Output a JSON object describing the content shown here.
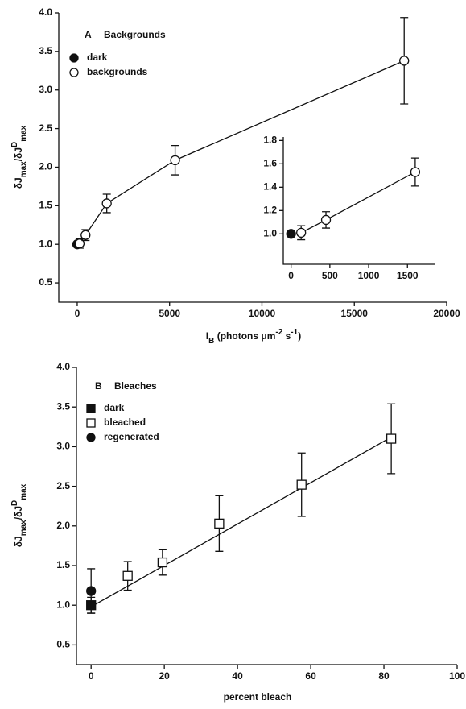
{
  "chart_data": [
    {
      "type": "scatter",
      "panel": "A",
      "title": "Backgrounds",
      "xlim": [
        -1000,
        20000
      ],
      "ylim": [
        0.25,
        4.0
      ],
      "xticks": [
        0,
        5000,
        10000,
        15000,
        20000
      ],
      "yticks": [
        0.5,
        {
          "value": 1,
          "label": "1.0"
        },
        1.5,
        {
          "value": 2,
          "label": "2.0"
        },
        2.5,
        {
          "value": 3,
          "label": "3.0"
        },
        3.5,
        {
          "value": 4,
          "label": "4.0"
        }
      ],
      "xlabel": [
        {
          "text": "I"
        },
        {
          "text": "B",
          "shift": "sub"
        },
        {
          "text": " (photons μm"
        },
        {
          "text": "-2",
          "shift": "super"
        },
        {
          "text": " s"
        },
        {
          "text": "-1",
          "shift": "super"
        },
        {
          "text": ")"
        }
      ],
      "ylabel": [
        {
          "text": "δJ"
        },
        {
          "text": "max",
          "shift": "sub"
        },
        {
          "text": "/δJ"
        },
        {
          "text": "D",
          "shift": "super"
        },
        {
          "text": "max",
          "shift": "sub"
        }
      ],
      "series": [
        {
          "name": "dark",
          "marker": "circle",
          "filled": true,
          "color": "#111111",
          "x": [
            0
          ],
          "values": [
            1.0
          ],
          "errors": [
            0
          ]
        },
        {
          "name": "backgrounds",
          "marker": "circle",
          "filled": false,
          "color": "#111111",
          "connect": true,
          "x": [
            130,
            450,
            1600,
            5300,
            17700
          ],
          "values": [
            1.01,
            1.12,
            1.53,
            2.09,
            3.38
          ],
          "errors": [
            0.06,
            0.07,
            0.12,
            0.19,
            0.56
          ]
        }
      ]
    },
    {
      "type": "scatter",
      "xlim": [
        -100,
        1850
      ],
      "ylim": [
        0.74,
        1.83
      ],
      "xticks": [
        0,
        500,
        1000,
        1500
      ],
      "yticks": [
        {
          "value": 1,
          "label": "1.0"
        },
        1.2,
        1.4,
        1.6,
        {
          "value": 1.8,
          "label": "1.8"
        }
      ],
      "series": [
        {
          "marker": "circle",
          "filled": true,
          "color": "#111111",
          "x": [
            0
          ],
          "values": [
            1.0
          ],
          "errors": [
            0
          ]
        },
        {
          "marker": "circle",
          "filled": false,
          "color": "#111111",
          "connect": true,
          "x": [
            130,
            450,
            1600
          ],
          "values": [
            1.01,
            1.12,
            1.53
          ],
          "errors": [
            0.06,
            0.07,
            0.12
          ]
        }
      ]
    },
    {
      "type": "scatter",
      "panel": "B",
      "title": "Bleaches",
      "xlim": [
        -4,
        100
      ],
      "ylim": [
        0.25,
        4.0
      ],
      "xticks": [
        0,
        20,
        40,
        60,
        80,
        100
      ],
      "yticks": [
        0.5,
        {
          "value": 1,
          "label": "1.0"
        },
        1.5,
        {
          "value": 2,
          "label": "2.0"
        },
        2.5,
        {
          "value": 3,
          "label": "3.0"
        },
        3.5,
        {
          "value": 4,
          "label": "4.0"
        }
      ],
      "xlabel": [
        {
          "text": "percent bleach"
        }
      ],
      "ylabel": [
        {
          "text": "δJ"
        },
        {
          "text": "max",
          "shift": "sub"
        },
        {
          "text": "/δJ"
        },
        {
          "text": "D",
          "shift": "super"
        },
        {
          "text": "max",
          "shift": "sub"
        }
      ],
      "fit": {
        "x": [
          0,
          82
        ],
        "y": [
          0.98,
          3.12
        ]
      },
      "series": [
        {
          "name": "dark",
          "marker": "square",
          "filled": true,
          "color": "#111111",
          "x": [
            0
          ],
          "values": [
            1.0
          ],
          "errors": [
            0.1
          ]
        },
        {
          "name": "bleached",
          "marker": "square",
          "filled": false,
          "color": "#111111",
          "x": [
            10,
            19.5,
            35,
            57.5,
            82
          ],
          "values": [
            1.37,
            1.54,
            2.03,
            2.52,
            3.1
          ],
          "errors": [
            0.18,
            0.16,
            0.35,
            0.4,
            0.44
          ]
        },
        {
          "name": "regenerated",
          "marker": "circle",
          "filled": true,
          "color": "#111111",
          "x": [
            0
          ],
          "values": [
            1.18
          ],
          "errors": [
            0.28
          ]
        }
      ]
    }
  ]
}
